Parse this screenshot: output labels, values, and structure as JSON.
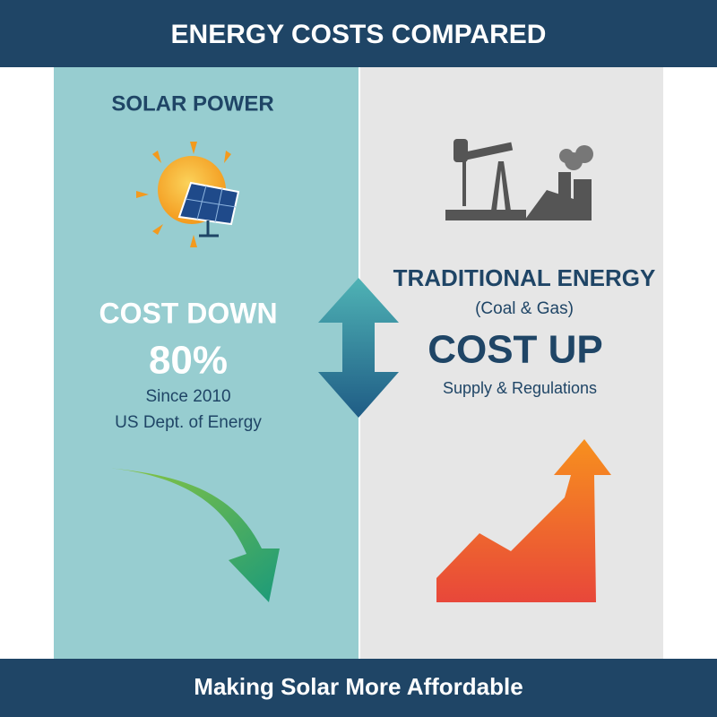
{
  "header": {
    "title": "ENERGY COSTS COMPARED"
  },
  "solar": {
    "heading": "SOLAR POWER",
    "trend": "COST DOWN",
    "stat": "80%",
    "since": "Since 2010",
    "source": "US Dept. of Energy"
  },
  "traditional": {
    "heading": "TRADITIONAL ENERGY",
    "subheading": "(Coal & Gas)",
    "trend": "COST UP",
    "reason": "Supply & Regulations"
  },
  "footer": {
    "text": "Making Solar More Affordable"
  }
}
